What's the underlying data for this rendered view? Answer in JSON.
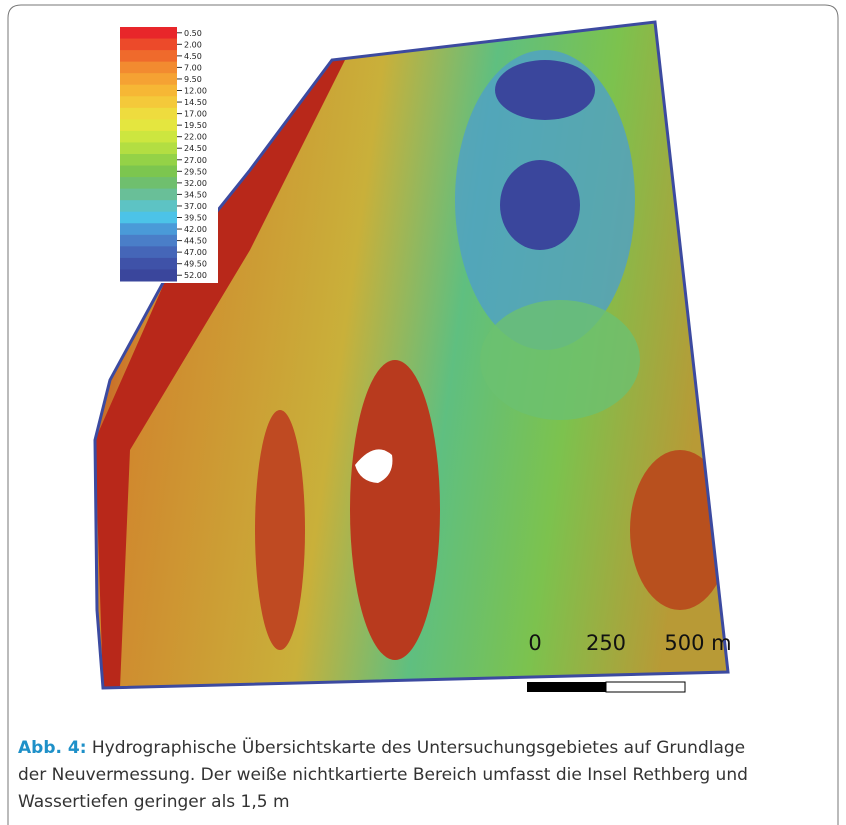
{
  "legend": [
    {
      "label": "0.50",
      "color": "#e8262a"
    },
    {
      "label": "2.00",
      "color": "#ec4a2a"
    },
    {
      "label": "4.50",
      "color": "#ef6a2c"
    },
    {
      "label": "7.00",
      "color": "#f28b30"
    },
    {
      "label": "9.50",
      "color": "#f5a233"
    },
    {
      "label": "12.00",
      "color": "#f6b735"
    },
    {
      "label": "14.50",
      "color": "#f4c93a"
    },
    {
      "label": "17.00",
      "color": "#eedc3e"
    },
    {
      "label": "19.50",
      "color": "#e4e63f"
    },
    {
      "label": "22.00",
      "color": "#cde63f"
    },
    {
      "label": "24.50",
      "color": "#b3de42"
    },
    {
      "label": "27.00",
      "color": "#94d247"
    },
    {
      "label": "29.50",
      "color": "#7cc64f"
    },
    {
      "label": "32.00",
      "color": "#6fbf6e"
    },
    {
      "label": "34.50",
      "color": "#69bf98"
    },
    {
      "label": "37.00",
      "color": "#5dc3c4"
    },
    {
      "label": "39.50",
      "color": "#4cc3e8"
    },
    {
      "label": "42.00",
      "color": "#4a9ad8"
    },
    {
      "label": "44.50",
      "color": "#4a7ec8"
    },
    {
      "label": "47.00",
      "color": "#4566b8"
    },
    {
      "label": "49.50",
      "color": "#3f52a8"
    },
    {
      "label": "52.00",
      "color": "#3a469c"
    }
  ],
  "scale_bar": {
    "labels": [
      "0",
      "250",
      "500 m"
    ]
  },
  "caption": {
    "label": "Abb. 4:",
    "lines": [
      " Hydrographische Übersichtskarte des Untersuchungsgebietes auf Grundlage",
      "der Neuvermessung. Der weiße nichtkartierte Bereich umfasst die Insel Rethberg und",
      "Wassertiefen geringer als 1,5 m"
    ]
  }
}
